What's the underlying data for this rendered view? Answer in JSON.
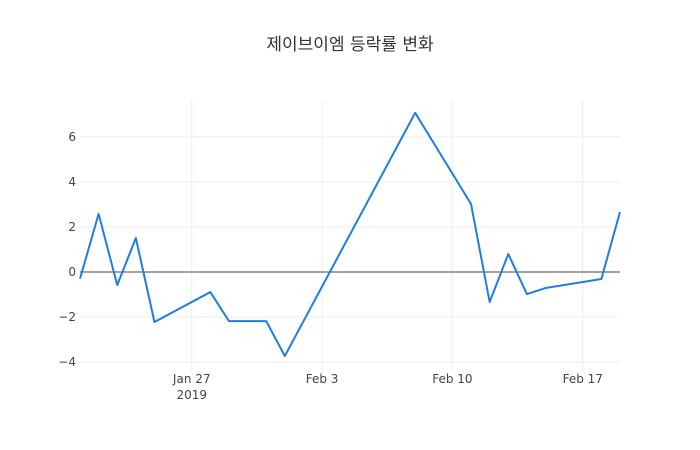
{
  "chart_data": {
    "type": "line",
    "title": "제이브이엠 등락률 변화",
    "x": [
      "2019-01-21",
      "2019-01-22",
      "2019-01-23",
      "2019-01-24",
      "2019-01-25",
      "2019-01-28",
      "2019-01-29",
      "2019-01-31",
      "2019-02-01",
      "2019-02-08",
      "2019-02-11",
      "2019-02-12",
      "2019-02-13",
      "2019-02-14",
      "2019-02-15",
      "2019-02-18",
      "2019-02-19"
    ],
    "series": [
      {
        "color": "#1f7ee0",
        "values": [
          -0.3,
          2.58,
          -0.58,
          1.51,
          -2.22,
          -0.89,
          -2.18,
          -2.18,
          -3.73,
          7.07,
          3.02,
          -1.33,
          0.8,
          -0.98,
          -0.71,
          -0.31,
          2.67
        ]
      }
    ],
    "xlim": [
      "2019-01-21",
      "2019-02-19"
    ],
    "xticks": [
      {
        "value": "2019-01-27",
        "label": "Jan 27\n2019"
      },
      {
        "value": "2019-02-03",
        "label": "Feb 3"
      },
      {
        "value": "2019-02-10",
        "label": "Feb 10"
      },
      {
        "value": "2019-02-17",
        "label": "Feb 17"
      }
    ],
    "ylim": [
      -4.44,
      7.64
    ],
    "yticks": [
      {
        "value": -4,
        "label": "−4"
      },
      {
        "value": -2,
        "label": "−2"
      },
      0,
      2,
      4,
      6
    ],
    "grid": true,
    "zeroline": true
  }
}
